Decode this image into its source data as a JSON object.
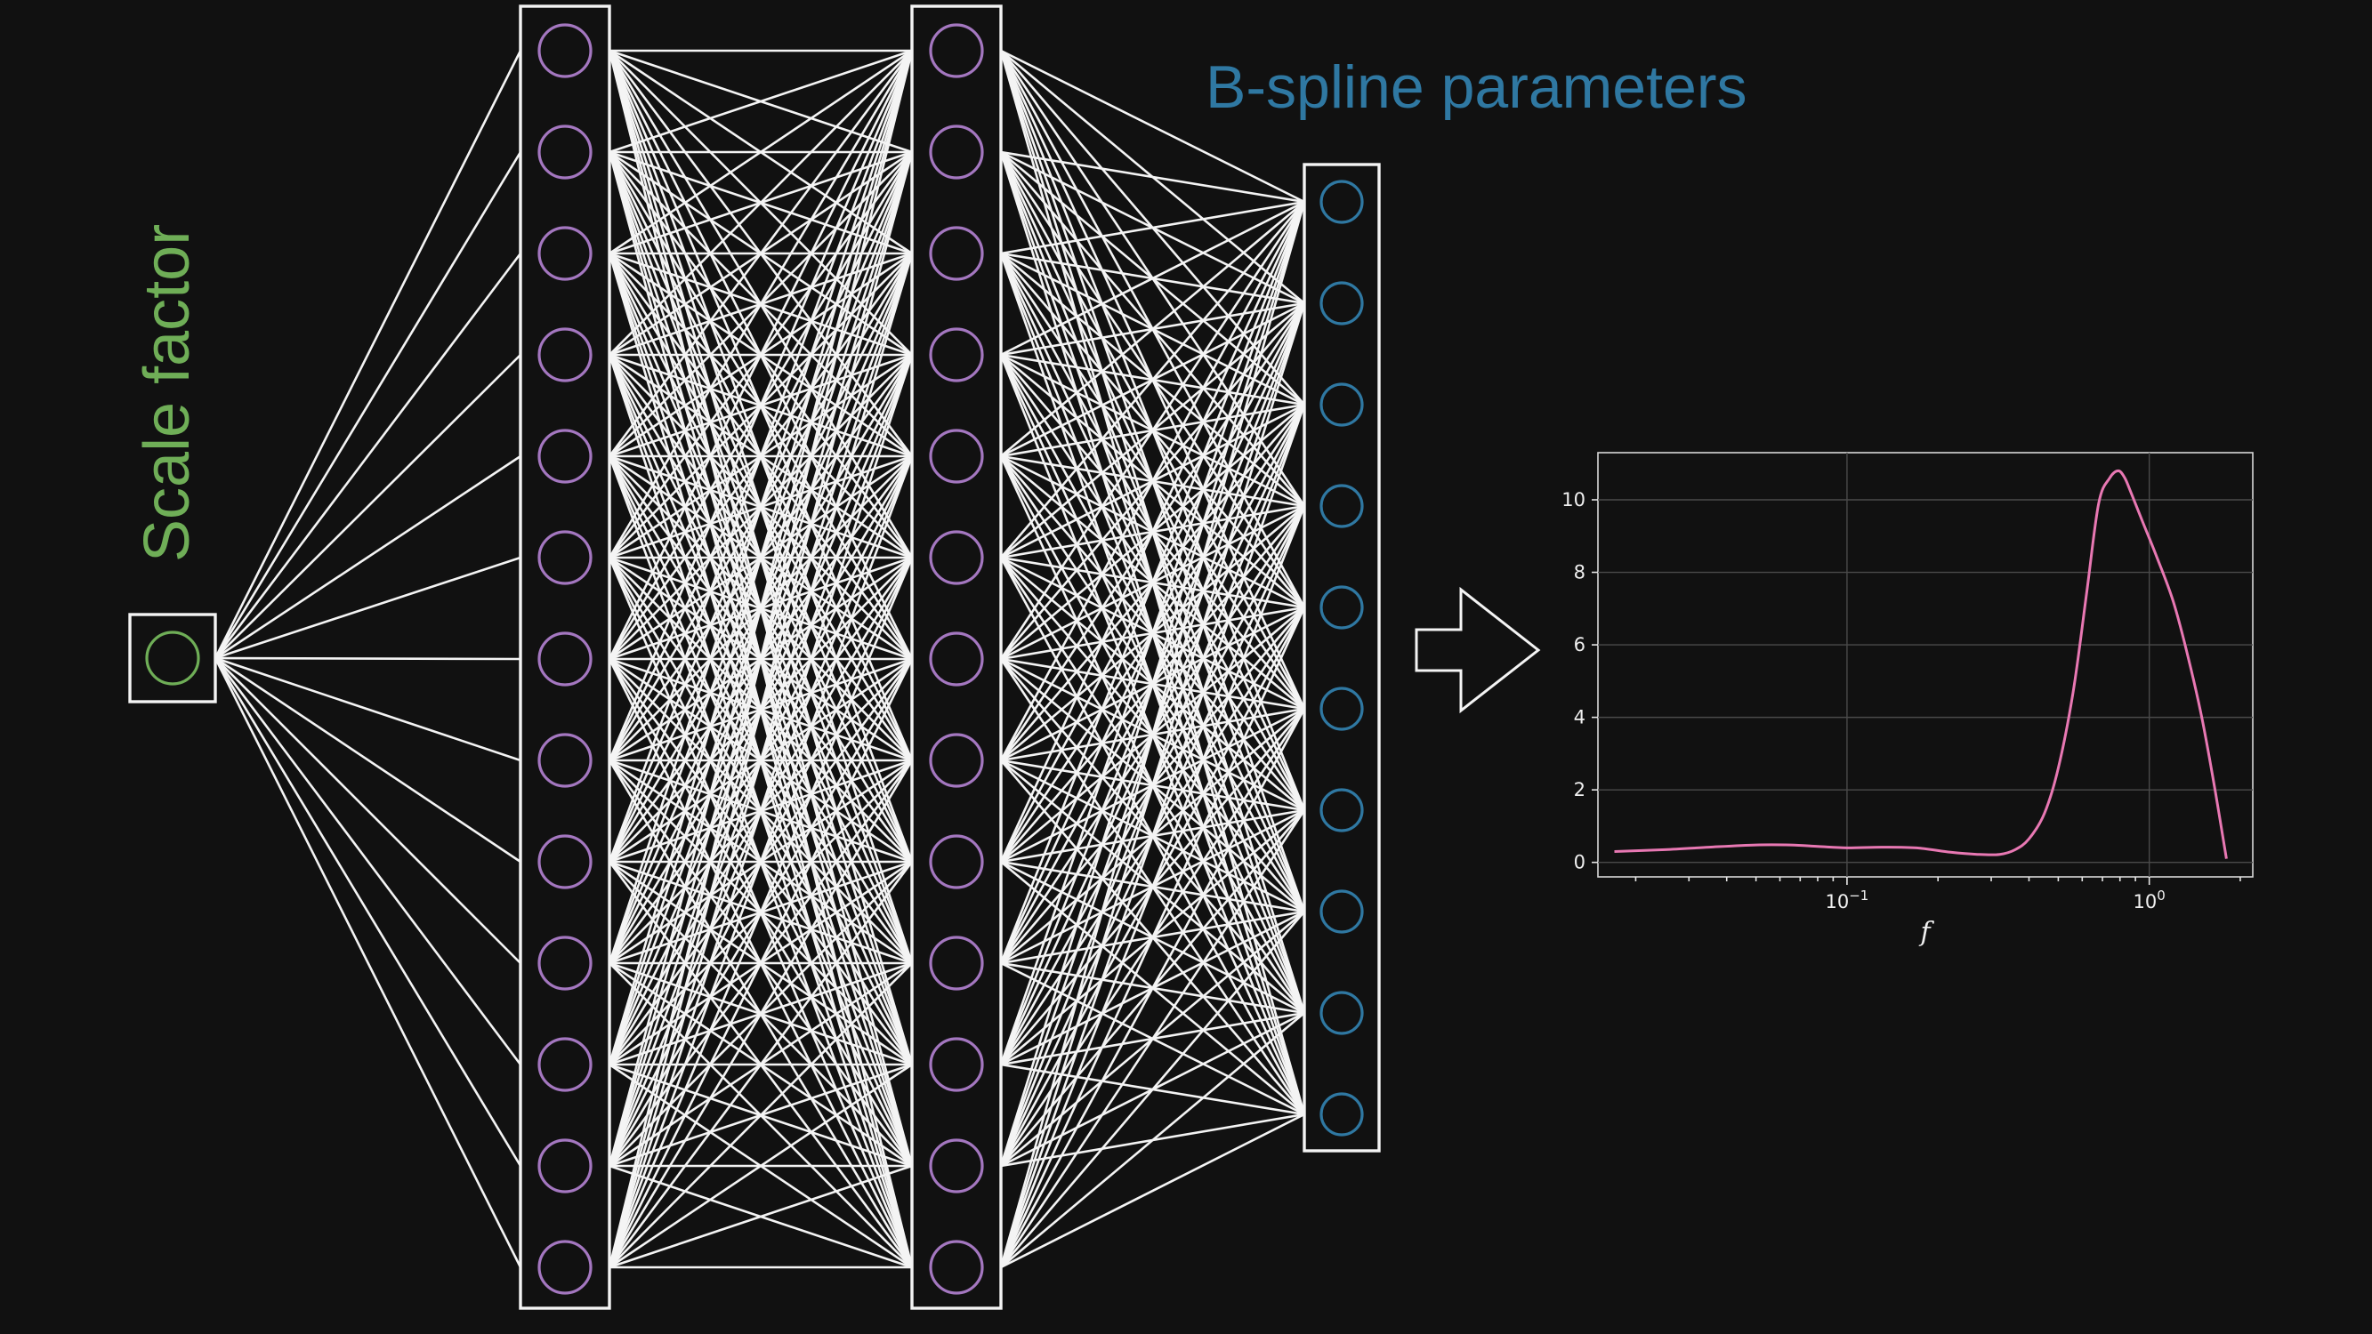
{
  "diagram": {
    "input_label": "Scale factor",
    "output_label": "B-spline parameters",
    "layers": [
      {
        "name": "input",
        "nodes": 1,
        "color": "#6fae57"
      },
      {
        "name": "hidden-1",
        "nodes": 13,
        "color": "#a477c0"
      },
      {
        "name": "hidden-2",
        "nodes": 13,
        "color": "#a477c0"
      },
      {
        "name": "output",
        "nodes": 10,
        "color": "#2f78a2"
      }
    ],
    "connection_color": "#f4f4f4",
    "background": "#111111"
  },
  "chart_data": {
    "type": "line",
    "xlabel": "f",
    "ylabel": "",
    "xscale": "log",
    "xlim": [
      0.015,
      2.2
    ],
    "ylim": [
      -0.4,
      11.3
    ],
    "grid": true,
    "xticks": [
      {
        "value": 0.1,
        "base": "10",
        "exp": "−1"
      },
      {
        "value": 1,
        "base": "10",
        "exp": "0"
      }
    ],
    "yticks": [
      0,
      2,
      4,
      6,
      8,
      10
    ],
    "series": [
      {
        "color": "#e878b3",
        "x": [
          0.017,
          0.025,
          0.035,
          0.05,
          0.065,
          0.08,
          0.1,
          0.13,
          0.17,
          0.22,
          0.27,
          0.32,
          0.36,
          0.4,
          0.45,
          0.5,
          0.56,
          0.62,
          0.68,
          0.74,
          0.79,
          0.83,
          0.87,
          0.95,
          1.05,
          1.2,
          1.35,
          1.5,
          1.65,
          1.8
        ],
        "y": [
          0.3,
          0.35,
          0.42,
          0.48,
          0.48,
          0.44,
          0.4,
          0.42,
          0.4,
          0.28,
          0.22,
          0.22,
          0.35,
          0.65,
          1.35,
          2.6,
          4.7,
          7.4,
          9.9,
          10.6,
          10.8,
          10.6,
          10.2,
          9.4,
          8.5,
          7.2,
          5.6,
          3.9,
          2.0,
          0.1
        ]
      }
    ]
  }
}
